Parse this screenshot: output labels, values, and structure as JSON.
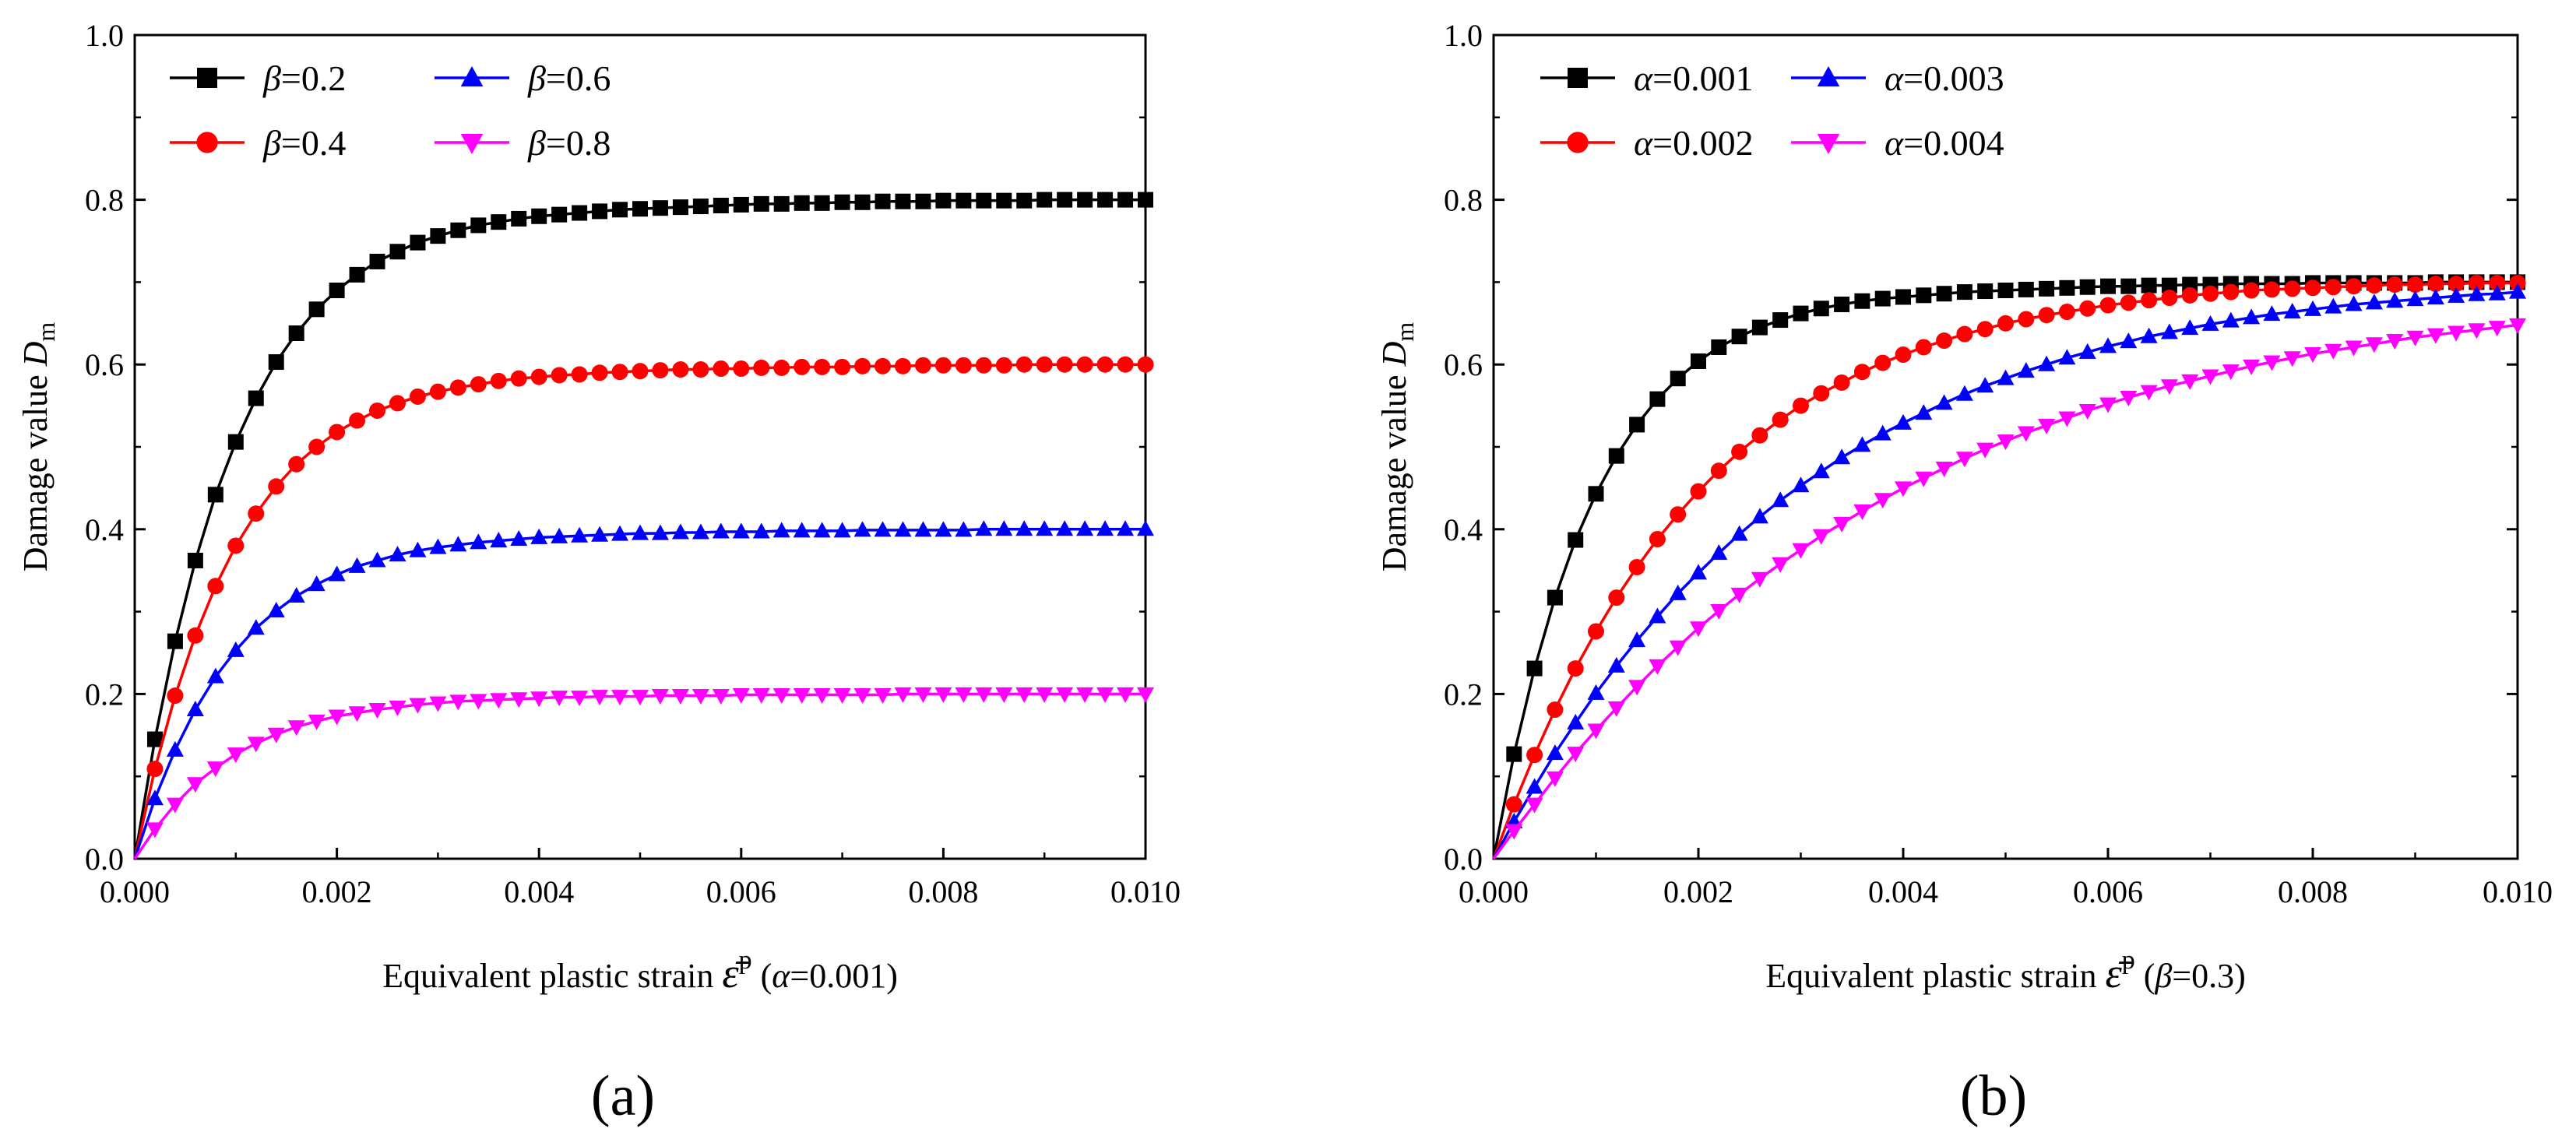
{
  "chart_data": [
    {
      "type": "line",
      "panel_label": "(a)",
      "xlabel": "Equivalent plastic strain",
      "xlabel_symbol": "ε̄",
      "xlabel_sup": "p",
      "xlabel_param_open": "(",
      "xlabel_param_sym": "α",
      "xlabel_param_rest": "=0.001)",
      "ylabel": "Damage value",
      "ylabel_symbol": "D",
      "ylabel_sub": "m",
      "xlim": [
        0.0,
        0.01
      ],
      "ylim": [
        0.0,
        1.0
      ],
      "xticks": [
        "0.000",
        "0.002",
        "0.004",
        "0.006",
        "0.008",
        "0.010"
      ],
      "yticks": [
        "0.0",
        "0.2",
        "0.4",
        "0.6",
        "0.8",
        "1.0"
      ],
      "legend_position": "top-left",
      "x": [
        0.0,
        0.0002,
        0.0004,
        0.0006,
        0.0008,
        0.001,
        0.0012,
        0.0014,
        0.0016,
        0.0018,
        0.002,
        0.0022,
        0.0024,
        0.0026,
        0.0028,
        0.003,
        0.0032,
        0.0034,
        0.0036,
        0.0038,
        0.004,
        0.0042,
        0.0044,
        0.0046,
        0.0048,
        0.005,
        0.0052,
        0.0054,
        0.0056,
        0.0058,
        0.006,
        0.0062,
        0.0064,
        0.0066,
        0.0068,
        0.007,
        0.0072,
        0.0074,
        0.0076,
        0.0078,
        0.008,
        0.0082,
        0.0084,
        0.0086,
        0.0088,
        0.009,
        0.0092,
        0.0094,
        0.0096,
        0.0098,
        0.01
      ],
      "series": [
        {
          "name": "β=0.2",
          "legend_sym": "β",
          "legend_val": "=0.2",
          "color": "#000000",
          "marker": "square",
          "values": [
            0.0,
            0.145,
            0.264,
            0.362,
            0.442,
            0.506,
            0.559,
            0.603,
            0.638,
            0.667,
            0.69,
            0.709,
            0.725,
            0.737,
            0.748,
            0.756,
            0.763,
            0.769,
            0.773,
            0.777,
            0.78,
            0.782,
            0.784,
            0.786,
            0.788,
            0.789,
            0.79,
            0.791,
            0.792,
            0.793,
            0.794,
            0.795,
            0.795,
            0.796,
            0.796,
            0.797,
            0.797,
            0.798,
            0.798,
            0.798,
            0.799,
            0.799,
            0.799,
            0.799,
            0.799,
            0.8,
            0.8,
            0.8,
            0.8,
            0.8,
            0.8
          ]
        },
        {
          "name": "β=0.4",
          "legend_sym": "β",
          "legend_val": "=0.4",
          "color": "#ff0000",
          "marker": "circle",
          "values": [
            0.0,
            0.109,
            0.198,
            0.271,
            0.331,
            0.38,
            0.419,
            0.452,
            0.479,
            0.5,
            0.518,
            0.532,
            0.544,
            0.553,
            0.561,
            0.567,
            0.572,
            0.576,
            0.58,
            0.583,
            0.585,
            0.587,
            0.588,
            0.59,
            0.591,
            0.592,
            0.593,
            0.594,
            0.594,
            0.595,
            0.595,
            0.596,
            0.596,
            0.597,
            0.597,
            0.597,
            0.598,
            0.598,
            0.598,
            0.599,
            0.599,
            0.599,
            0.599,
            0.599,
            0.6,
            0.6,
            0.6,
            0.6,
            0.6,
            0.6,
            0.6
          ]
        },
        {
          "name": "β=0.6",
          "legend_sym": "β",
          "legend_val": "=0.6",
          "color": "#0000ff",
          "marker": "triangle-up",
          "values": [
            0.0,
            0.073,
            0.132,
            0.181,
            0.221,
            0.253,
            0.28,
            0.301,
            0.319,
            0.333,
            0.345,
            0.355,
            0.362,
            0.369,
            0.374,
            0.378,
            0.381,
            0.384,
            0.386,
            0.388,
            0.39,
            0.391,
            0.392,
            0.393,
            0.394,
            0.395,
            0.395,
            0.396,
            0.396,
            0.397,
            0.397,
            0.397,
            0.398,
            0.398,
            0.398,
            0.398,
            0.399,
            0.399,
            0.399,
            0.399,
            0.399,
            0.399,
            0.4,
            0.4,
            0.4,
            0.4,
            0.4,
            0.4,
            0.4,
            0.4,
            0.4
          ]
        },
        {
          "name": "β=0.8",
          "legend_sym": "β",
          "legend_val": "=0.8",
          "color": "#ff00ff",
          "marker": "triangle-down",
          "values": [
            0.0,
            0.036,
            0.066,
            0.091,
            0.11,
            0.127,
            0.14,
            0.151,
            0.16,
            0.167,
            0.173,
            0.177,
            0.181,
            0.184,
            0.187,
            0.189,
            0.191,
            0.192,
            0.193,
            0.194,
            0.195,
            0.196,
            0.196,
            0.197,
            0.197,
            0.197,
            0.198,
            0.198,
            0.198,
            0.198,
            0.199,
            0.199,
            0.199,
            0.199,
            0.199,
            0.199,
            0.199,
            0.199,
            0.2,
            0.2,
            0.2,
            0.2,
            0.2,
            0.2,
            0.2,
            0.2,
            0.2,
            0.2,
            0.2,
            0.2,
            0.2
          ]
        }
      ]
    },
    {
      "type": "line",
      "panel_label": "(b)",
      "xlabel": "Equivalent plastic strain",
      "xlabel_symbol": "ε̄",
      "xlabel_sup": "p",
      "xlabel_param_open": "(",
      "xlabel_param_sym": "β",
      "xlabel_param_rest": "=0.3)",
      "ylabel": "Damage value",
      "ylabel_symbol": "D",
      "ylabel_sub": "m",
      "xlim": [
        0.0,
        0.01
      ],
      "ylim": [
        0.0,
        1.0
      ],
      "xticks": [
        "0.000",
        "0.002",
        "0.004",
        "0.006",
        "0.008",
        "0.010"
      ],
      "yticks": [
        "0.0",
        "0.2",
        "0.4",
        "0.6",
        "0.8",
        "1.0"
      ],
      "legend_position": "top-left",
      "x": [
        0.0,
        0.0002,
        0.0004,
        0.0006,
        0.0008,
        0.001,
        0.0012,
        0.0014,
        0.0016,
        0.0018,
        0.002,
        0.0022,
        0.0024,
        0.0026,
        0.0028,
        0.003,
        0.0032,
        0.0034,
        0.0036,
        0.0038,
        0.004,
        0.0042,
        0.0044,
        0.0046,
        0.0048,
        0.005,
        0.0052,
        0.0054,
        0.0056,
        0.0058,
        0.006,
        0.0062,
        0.0064,
        0.0066,
        0.0068,
        0.007,
        0.0072,
        0.0074,
        0.0076,
        0.0078,
        0.008,
        0.0082,
        0.0084,
        0.0086,
        0.0088,
        0.009,
        0.0092,
        0.0094,
        0.0096,
        0.0098,
        0.01
      ],
      "series": [
        {
          "name": "α=0.001",
          "legend_sym": "α",
          "legend_val": "=0.001",
          "color": "#000000",
          "marker": "square",
          "values": [
            0.0,
            0.127,
            0.231,
            0.317,
            0.387,
            0.443,
            0.489,
            0.527,
            0.558,
            0.583,
            0.604,
            0.621,
            0.634,
            0.645,
            0.654,
            0.662,
            0.668,
            0.673,
            0.677,
            0.68,
            0.682,
            0.684,
            0.686,
            0.688,
            0.689,
            0.69,
            0.691,
            0.692,
            0.693,
            0.694,
            0.695,
            0.695,
            0.696,
            0.696,
            0.697,
            0.697,
            0.698,
            0.698,
            0.698,
            0.698,
            0.699,
            0.699,
            0.699,
            0.699,
            0.699,
            0.699,
            0.7,
            0.7,
            0.7,
            0.7,
            0.7
          ]
        },
        {
          "name": "α=0.002",
          "legend_sym": "α",
          "legend_val": "=0.002",
          "color": "#ff0000",
          "marker": "circle",
          "values": [
            0.0,
            0.066,
            0.126,
            0.181,
            0.231,
            0.276,
            0.317,
            0.354,
            0.388,
            0.418,
            0.446,
            0.471,
            0.494,
            0.514,
            0.533,
            0.55,
            0.565,
            0.578,
            0.591,
            0.602,
            0.612,
            0.621,
            0.629,
            0.637,
            0.643,
            0.65,
            0.655,
            0.66,
            0.664,
            0.668,
            0.672,
            0.675,
            0.678,
            0.681,
            0.684,
            0.686,
            0.688,
            0.69,
            0.691,
            0.692,
            0.693,
            0.694,
            0.695,
            0.696,
            0.697,
            0.697,
            0.698,
            0.698,
            0.699,
            0.699,
            0.699
          ]
        },
        {
          "name": "α=0.003",
          "legend_sym": "α",
          "legend_val": "=0.003",
          "color": "#0000ff",
          "marker": "triangle-up",
          "values": [
            0.0,
            0.045,
            0.087,
            0.128,
            0.165,
            0.201,
            0.234,
            0.265,
            0.294,
            0.322,
            0.347,
            0.371,
            0.394,
            0.415,
            0.435,
            0.453,
            0.47,
            0.487,
            0.502,
            0.516,
            0.529,
            0.541,
            0.553,
            0.564,
            0.574,
            0.583,
            0.592,
            0.6,
            0.608,
            0.615,
            0.622,
            0.628,
            0.634,
            0.639,
            0.644,
            0.649,
            0.653,
            0.657,
            0.661,
            0.664,
            0.667,
            0.67,
            0.673,
            0.675,
            0.677,
            0.679,
            0.681,
            0.683,
            0.685,
            0.686,
            0.688
          ]
        },
        {
          "name": "α=0.004",
          "legend_sym": "α",
          "legend_val": "=0.004",
          "color": "#ff00ff",
          "marker": "triangle-down",
          "values": [
            0.0,
            0.034,
            0.066,
            0.098,
            0.128,
            0.156,
            0.183,
            0.209,
            0.234,
            0.257,
            0.28,
            0.301,
            0.321,
            0.34,
            0.358,
            0.375,
            0.392,
            0.407,
            0.422,
            0.436,
            0.45,
            0.462,
            0.474,
            0.486,
            0.497,
            0.507,
            0.517,
            0.526,
            0.535,
            0.544,
            0.552,
            0.56,
            0.567,
            0.574,
            0.58,
            0.586,
            0.592,
            0.598,
            0.603,
            0.608,
            0.613,
            0.617,
            0.621,
            0.625,
            0.629,
            0.633,
            0.636,
            0.639,
            0.642,
            0.645,
            0.648
          ]
        }
      ]
    }
  ]
}
